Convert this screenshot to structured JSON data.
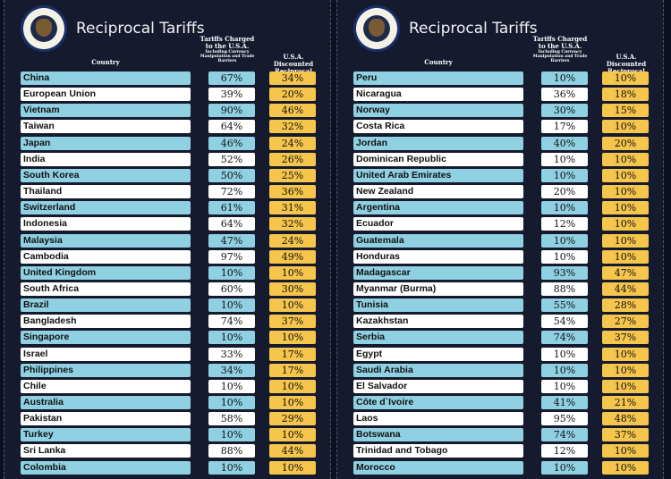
{
  "title": "Reciprocal Tariffs",
  "headers": {
    "country": "Country",
    "charged": "Tariffs Charged to the U.S.A.",
    "charged_sub": "Including Currency Manipulation and Trade Barriers",
    "discounted": "U.S.A. Discounted Reciprocal Tariffs"
  },
  "colors": {
    "blue": "#8fd0e2",
    "white": "#ffffff",
    "yellow": "#f6c54b",
    "background": "#151a2e"
  },
  "chart_data": {
    "type": "table",
    "title": "Reciprocal Tariffs",
    "columns": [
      "Country",
      "Tariffs Charged to the U.S.A. Including Currency Manipulation and Trade Barriers",
      "U.S.A. Discounted Reciprocal Tariffs"
    ],
    "panels": [
      {
        "rows": [
          [
            "China",
            "67%",
            "34%"
          ],
          [
            "European Union",
            "39%",
            "20%"
          ],
          [
            "Vietnam",
            "90%",
            "46%"
          ],
          [
            "Taiwan",
            "64%",
            "32%"
          ],
          [
            "Japan",
            "46%",
            "24%"
          ],
          [
            "India",
            "52%",
            "26%"
          ],
          [
            "South Korea",
            "50%",
            "25%"
          ],
          [
            "Thailand",
            "72%",
            "36%"
          ],
          [
            "Switzerland",
            "61%",
            "31%"
          ],
          [
            "Indonesia",
            "64%",
            "32%"
          ],
          [
            "Malaysia",
            "47%",
            "24%"
          ],
          [
            "Cambodia",
            "97%",
            "49%"
          ],
          [
            "United Kingdom",
            "10%",
            "10%"
          ],
          [
            "South Africa",
            "60%",
            "30%"
          ],
          [
            "Brazil",
            "10%",
            "10%"
          ],
          [
            "Bangladesh",
            "74%",
            "37%"
          ],
          [
            "Singapore",
            "10%",
            "10%"
          ],
          [
            "Israel",
            "33%",
            "17%"
          ],
          [
            "Philippines",
            "34%",
            "17%"
          ],
          [
            "Chile",
            "10%",
            "10%"
          ],
          [
            "Australia",
            "10%",
            "10%"
          ],
          [
            "Pakistan",
            "58%",
            "29%"
          ],
          [
            "Turkey",
            "10%",
            "10%"
          ],
          [
            "Sri Lanka",
            "88%",
            "44%"
          ],
          [
            "Colombia",
            "10%",
            "10%"
          ]
        ]
      },
      {
        "rows": [
          [
            "Peru",
            "10%",
            "10%"
          ],
          [
            "Nicaragua",
            "36%",
            "18%"
          ],
          [
            "Norway",
            "30%",
            "15%"
          ],
          [
            "Costa Rica",
            "17%",
            "10%"
          ],
          [
            "Jordan",
            "40%",
            "20%"
          ],
          [
            "Dominican Republic",
            "10%",
            "10%"
          ],
          [
            "United Arab Emirates",
            "10%",
            "10%"
          ],
          [
            "New Zealand",
            "20%",
            "10%"
          ],
          [
            "Argentina",
            "10%",
            "10%"
          ],
          [
            "Ecuador",
            "12%",
            "10%"
          ],
          [
            "Guatemala",
            "10%",
            "10%"
          ],
          [
            "Honduras",
            "10%",
            "10%"
          ],
          [
            "Madagascar",
            "93%",
            "47%"
          ],
          [
            "Myanmar (Burma)",
            "88%",
            "44%"
          ],
          [
            "Tunisia",
            "55%",
            "28%"
          ],
          [
            "Kazakhstan",
            "54%",
            "27%"
          ],
          [
            "Serbia",
            "74%",
            "37%"
          ],
          [
            "Egypt",
            "10%",
            "10%"
          ],
          [
            "Saudi Arabia",
            "10%",
            "10%"
          ],
          [
            "El Salvador",
            "10%",
            "10%"
          ],
          [
            "Côte d`Ivoire",
            "41%",
            "21%"
          ],
          [
            "Laos",
            "95%",
            "48%"
          ],
          [
            "Botswana",
            "74%",
            "37%"
          ],
          [
            "Trinidad and Tobago",
            "12%",
            "10%"
          ],
          [
            "Morocco",
            "10%",
            "10%"
          ]
        ]
      }
    ]
  }
}
